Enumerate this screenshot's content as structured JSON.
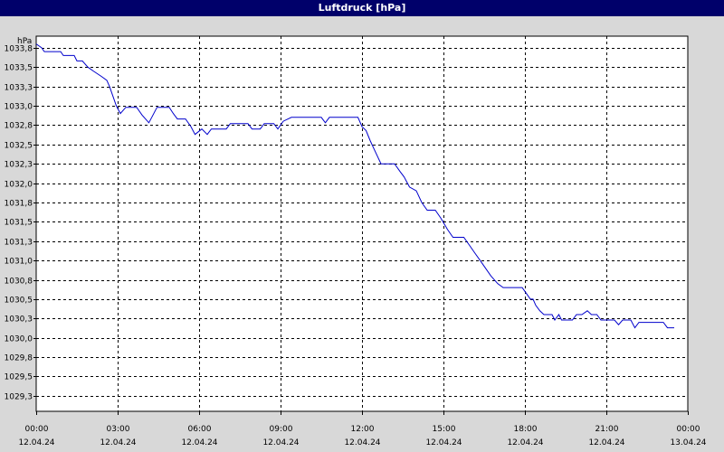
{
  "window": {
    "title": "Luftdruck [hPa]"
  },
  "chart_data": {
    "type": "line",
    "title": "Luftdruck [hPa]",
    "ylabel": "hPa",
    "xlabel": "",
    "ylim": [
      1029.1,
      1033.95
    ],
    "grid": true,
    "y_ticks": [
      {
        "value": 1033.8,
        "label": "1033,8"
      },
      {
        "value": 1033.55,
        "label": "1033,5"
      },
      {
        "value": 1033.3,
        "label": "1033,3"
      },
      {
        "value": 1033.05,
        "label": "1033,0"
      },
      {
        "value": 1032.8,
        "label": "1032,8"
      },
      {
        "value": 1032.55,
        "label": "1032,5"
      },
      {
        "value": 1032.3,
        "label": "1032,3"
      },
      {
        "value": 1032.05,
        "label": "1032,0"
      },
      {
        "value": 1031.8,
        "label": "1031,8"
      },
      {
        "value": 1031.55,
        "label": "1031,5"
      },
      {
        "value": 1031.3,
        "label": "1031,3"
      },
      {
        "value": 1031.05,
        "label": "1031,0"
      },
      {
        "value": 1030.8,
        "label": "1030,8"
      },
      {
        "value": 1030.55,
        "label": "1030,5"
      },
      {
        "value": 1030.3,
        "label": "1030,3"
      },
      {
        "value": 1030.05,
        "label": "1030,0"
      },
      {
        "value": 1029.8,
        "label": "1029,8"
      },
      {
        "value": 1029.55,
        "label": "1029,5"
      },
      {
        "value": 1029.3,
        "label": "1029,3"
      }
    ],
    "x_ticks": [
      {
        "hour": 0,
        "time": "00:00",
        "date": "12.04.24"
      },
      {
        "hour": 3,
        "time": "03:00",
        "date": "12.04.24"
      },
      {
        "hour": 6,
        "time": "06:00",
        "date": "12.04.24"
      },
      {
        "hour": 9,
        "time": "09:00",
        "date": "12.04.24"
      },
      {
        "hour": 12,
        "time": "12:00",
        "date": "12.04.24"
      },
      {
        "hour": 15,
        "time": "15:00",
        "date": "12.04.24"
      },
      {
        "hour": 18,
        "time": "18:00",
        "date": "12.04.24"
      },
      {
        "hour": 21,
        "time": "21:00",
        "date": "12.04.24"
      },
      {
        "hour": 24,
        "time": "00:00",
        "date": "13.04.24"
      }
    ],
    "xlim_hours": [
      0,
      24
    ],
    "series": [
      {
        "color": "#0000cc",
        "points": [
          [
            0.0,
            1033.85
          ],
          [
            0.2,
            1033.8
          ],
          [
            0.3,
            1033.75
          ],
          [
            0.5,
            1033.75
          ],
          [
            0.9,
            1033.75
          ],
          [
            1.0,
            1033.7
          ],
          [
            1.4,
            1033.7
          ],
          [
            1.5,
            1033.63
          ],
          [
            1.7,
            1033.63
          ],
          [
            1.9,
            1033.55
          ],
          [
            2.1,
            1033.5
          ],
          [
            2.4,
            1033.43
          ],
          [
            2.6,
            1033.38
          ],
          [
            2.7,
            1033.3
          ],
          [
            2.8,
            1033.2
          ],
          [
            2.95,
            1033.05
          ],
          [
            3.1,
            1032.95
          ],
          [
            3.3,
            1033.03
          ],
          [
            3.7,
            1033.03
          ],
          [
            3.9,
            1032.93
          ],
          [
            4.15,
            1032.83
          ],
          [
            4.3,
            1032.93
          ],
          [
            4.45,
            1033.03
          ],
          [
            4.9,
            1033.03
          ],
          [
            5.05,
            1032.95
          ],
          [
            5.2,
            1032.88
          ],
          [
            5.5,
            1032.88
          ],
          [
            5.7,
            1032.78
          ],
          [
            5.85,
            1032.68
          ],
          [
            6.1,
            1032.75
          ],
          [
            6.3,
            1032.68
          ],
          [
            6.45,
            1032.75
          ],
          [
            7.0,
            1032.75
          ],
          [
            7.15,
            1032.82
          ],
          [
            7.8,
            1032.82
          ],
          [
            7.95,
            1032.75
          ],
          [
            8.25,
            1032.75
          ],
          [
            8.4,
            1032.82
          ],
          [
            8.75,
            1032.82
          ],
          [
            8.9,
            1032.75
          ],
          [
            9.1,
            1032.85
          ],
          [
            9.4,
            1032.9
          ],
          [
            10.5,
            1032.9
          ],
          [
            10.65,
            1032.83
          ],
          [
            10.8,
            1032.9
          ],
          [
            11.85,
            1032.9
          ],
          [
            12.0,
            1032.78
          ],
          [
            12.15,
            1032.73
          ],
          [
            12.3,
            1032.6
          ],
          [
            12.5,
            1032.45
          ],
          [
            12.7,
            1032.3
          ],
          [
            13.2,
            1032.3
          ],
          [
            13.4,
            1032.2
          ],
          [
            13.55,
            1032.13
          ],
          [
            13.75,
            1032.0
          ],
          [
            14.0,
            1031.95
          ],
          [
            14.2,
            1031.8
          ],
          [
            14.4,
            1031.7
          ],
          [
            14.7,
            1031.7
          ],
          [
            14.9,
            1031.6
          ],
          [
            15.15,
            1031.45
          ],
          [
            15.35,
            1031.35
          ],
          [
            15.75,
            1031.35
          ],
          [
            15.95,
            1031.25
          ],
          [
            16.15,
            1031.15
          ],
          [
            16.35,
            1031.05
          ],
          [
            16.55,
            1030.95
          ],
          [
            16.75,
            1030.85
          ],
          [
            17.0,
            1030.75
          ],
          [
            17.2,
            1030.7
          ],
          [
            17.9,
            1030.7
          ],
          [
            18.1,
            1030.6
          ],
          [
            18.2,
            1030.55
          ],
          [
            18.3,
            1030.55
          ],
          [
            18.4,
            1030.47
          ],
          [
            18.55,
            1030.4
          ],
          [
            18.7,
            1030.35
          ],
          [
            19.0,
            1030.35
          ],
          [
            19.1,
            1030.28
          ],
          [
            19.25,
            1030.35
          ],
          [
            19.35,
            1030.28
          ],
          [
            19.75,
            1030.28
          ],
          [
            19.9,
            1030.35
          ],
          [
            20.1,
            1030.35
          ],
          [
            20.3,
            1030.4
          ],
          [
            20.45,
            1030.35
          ],
          [
            20.65,
            1030.35
          ],
          [
            20.8,
            1030.28
          ],
          [
            21.3,
            1030.28
          ],
          [
            21.45,
            1030.22
          ],
          [
            21.6,
            1030.28
          ],
          [
            21.9,
            1030.28
          ],
          [
            22.05,
            1030.18
          ],
          [
            22.2,
            1030.25
          ],
          [
            22.5,
            1030.25
          ],
          [
            23.1,
            1030.25
          ],
          [
            23.25,
            1030.18
          ],
          [
            23.5,
            1030.18
          ]
        ]
      }
    ]
  }
}
